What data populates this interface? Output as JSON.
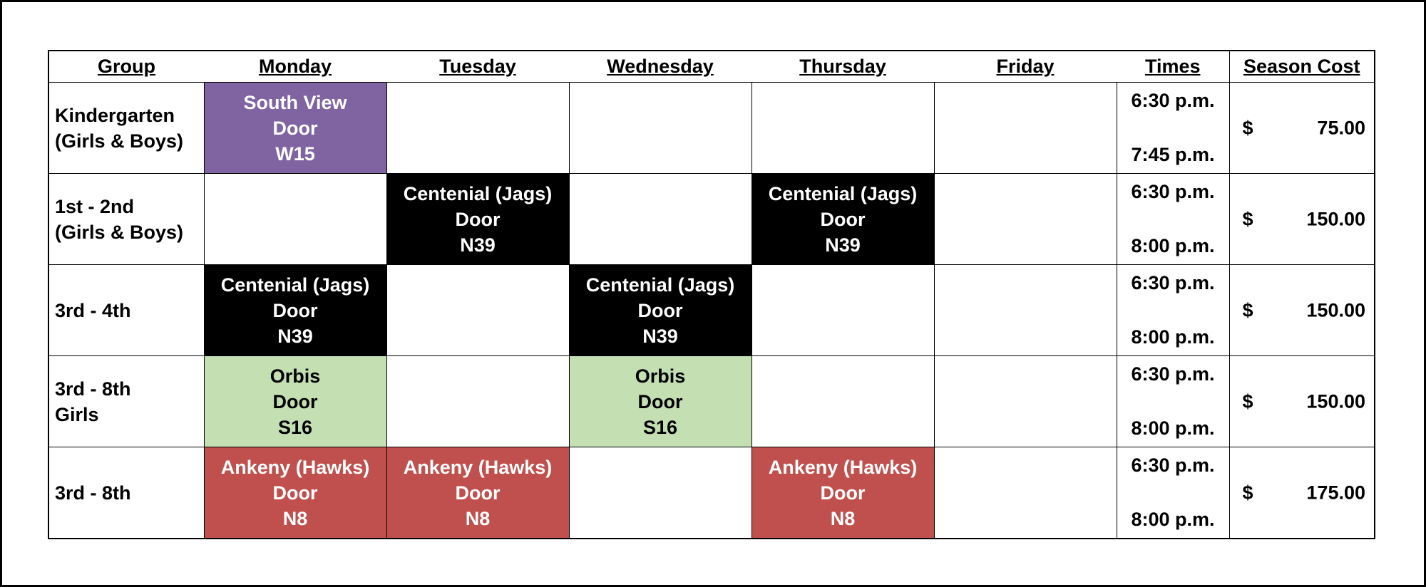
{
  "header": {
    "group": "Group",
    "monday": "Monday",
    "tuesday": "Tuesday",
    "wednesday": "Wednesday",
    "thursday": "Thursday",
    "friday": "Friday",
    "times": "Times",
    "season_cost": "Season Cost"
  },
  "colors": {
    "purple": "#8064a2",
    "black": "#000000",
    "green": "#c4e0b2",
    "red": "#c0504d"
  },
  "rows": [
    {
      "group": [
        "Kindergarten",
        "(Girls & Boys)"
      ],
      "monday": [
        "South View",
        "Door",
        "W15"
      ],
      "tuesday": [],
      "wednesday": [],
      "thursday": [],
      "friday": [],
      "time_start": "6:30 p.m.",
      "time_end": "7:45 p.m.",
      "currency": "$",
      "cost": "75.00"
    },
    {
      "group": [
        "1st - 2nd",
        "(Girls & Boys)"
      ],
      "monday": [],
      "tuesday": [
        "Centenial (Jags)",
        "Door",
        "N39"
      ],
      "wednesday": [],
      "thursday": [
        "Centenial (Jags)",
        "Door",
        "N39"
      ],
      "friday": [],
      "time_start": "6:30 p.m.",
      "time_end": "8:00 p.m.",
      "currency": "$",
      "cost": "150.00"
    },
    {
      "group": [
        "3rd - 4th"
      ],
      "monday": [
        "Centenial (Jags)",
        "Door",
        "N39"
      ],
      "tuesday": [],
      "wednesday": [
        "Centenial (Jags)",
        "Door",
        "N39"
      ],
      "thursday": [],
      "friday": [],
      "time_start": "6:30 p.m.",
      "time_end": "8:00 p.m.",
      "currency": "$",
      "cost": "150.00"
    },
    {
      "group": [
        "3rd - 8th",
        "Girls"
      ],
      "monday": [
        "Orbis",
        "Door",
        "S16"
      ],
      "tuesday": [],
      "wednesday": [
        "Orbis",
        "Door",
        "S16"
      ],
      "thursday": [],
      "friday": [],
      "time_start": "6:30 p.m.",
      "time_end": "8:00 p.m.",
      "currency": "$",
      "cost": "150.00"
    },
    {
      "group": [
        "3rd - 8th"
      ],
      "monday": [
        "Ankeny (Hawks)",
        "Door",
        "N8"
      ],
      "tuesday": [
        "Ankeny (Hawks)",
        "Door",
        "N8"
      ],
      "wednesday": [],
      "thursday": [
        "Ankeny (Hawks)",
        "Door",
        "N8"
      ],
      "friday": [],
      "time_start": "6:30 p.m.",
      "time_end": "8:00 p.m.",
      "currency": "$",
      "cost": "175.00"
    }
  ]
}
